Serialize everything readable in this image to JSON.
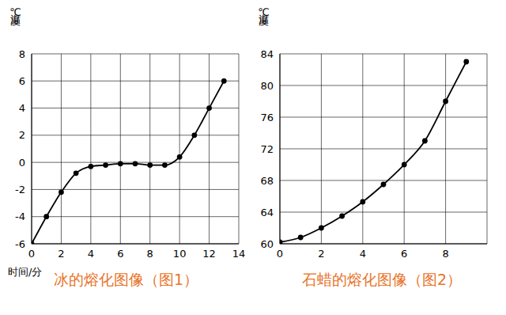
{
  "chart_data": [
    {
      "type": "line",
      "title": "冰的熔化图像（图1）",
      "y_label": "温度℃",
      "x_label": "时间/分",
      "x": [
        0,
        1,
        2,
        3,
        4,
        5,
        6,
        7,
        8,
        9,
        10,
        11,
        12,
        13
      ],
      "values": [
        -6,
        -4,
        -2.2,
        -0.8,
        -0.3,
        -0.2,
        -0.1,
        -0.1,
        -0.2,
        -0.2,
        0.4,
        2,
        4,
        6
      ],
      "color": "#000000",
      "marker": "circle",
      "grid": true,
      "xlim": [
        0,
        14
      ],
      "xticks": [
        0,
        2,
        4,
        6,
        8,
        10,
        12,
        14
      ],
      "ylim": [
        -6,
        8
      ],
      "yticks": [
        -6,
        -4,
        -2,
        0,
        2,
        4,
        6,
        8
      ]
    },
    {
      "type": "line",
      "title": "石蜡的熔化图像（图2）",
      "y_label": "温度℃",
      "x": [
        0,
        1,
        2,
        3,
        4,
        5,
        6,
        7,
        8,
        9
      ],
      "values": [
        60.2,
        60.8,
        62,
        63.5,
        65.3,
        67.5,
        70,
        73,
        78,
        83
      ],
      "color": "#000000",
      "marker": "circle",
      "grid": true,
      "xlim": [
        0,
        10
      ],
      "xticks": [
        0,
        2,
        4,
        6,
        8
      ],
      "ylim": [
        60,
        84
      ],
      "yticks": [
        60,
        64,
        68,
        72,
        76,
        80,
        84
      ]
    }
  ]
}
